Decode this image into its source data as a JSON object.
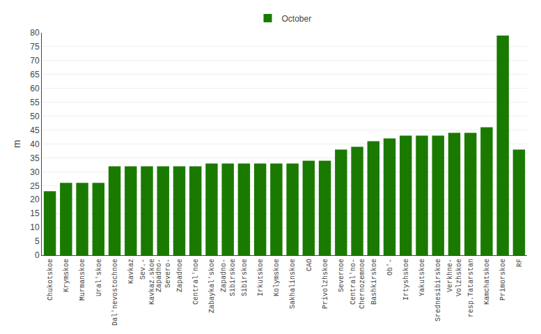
{
  "chart_data": {
    "type": "bar",
    "categories": [
      "Chukotskoe",
      "Krymskoe",
      "Murmanskoe",
      "Ural'skoe",
      "Dal'nevostochnoe",
      "Kavkaz",
      "Sev.-\nKavkaz.skoe",
      "Zapadno-\nSevero-",
      "Zapadnoe",
      "Central'noe",
      "Zabaykal'skoe",
      "Zapadno-\nSibirskoe",
      "Sibirskoe",
      "Irkutskoe",
      "Kolymskoe",
      "Sakhalinskoe",
      "CAO",
      "Privolzhskoe",
      "Severnoe",
      "Central'no-\nChernozemnoe",
      "Bashkirskoe",
      "Ob'-",
      "Irtyshskoe",
      "Yakutskoe",
      "Srednesibirskoe",
      "Verkhne-\nVolzhskoe",
      "resp.Tatarstan",
      "Kamchatskoe",
      "Primorskoe",
      "RF"
    ],
    "series": [
      {
        "name": "October",
        "color": "#1a7a00",
        "values": [
          23,
          26,
          26,
          26,
          32,
          32,
          32,
          32,
          32,
          32,
          33,
          33,
          33,
          33,
          33,
          33,
          34,
          34,
          38,
          39,
          41,
          42,
          43,
          43,
          43,
          44,
          44,
          46,
          79,
          38
        ]
      }
    ],
    "ylabel": "m",
    "ylim": [
      0,
      80
    ],
    "yticks": [
      0,
      5,
      10,
      15,
      20,
      25,
      30,
      35,
      40,
      45,
      50,
      55,
      60,
      65,
      70,
      75,
      80
    ],
    "grid": true,
    "legend": "top"
  }
}
